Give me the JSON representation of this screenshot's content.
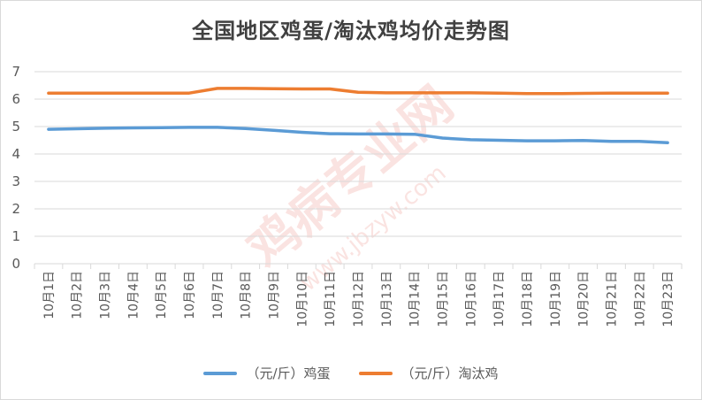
{
  "chart_data": {
    "type": "line",
    "title": "全国地区鸡蛋/淘汰鸡均价走势图",
    "xlabel": "",
    "ylabel": "",
    "ylim": [
      0,
      7
    ],
    "yticks": [
      0,
      1,
      2,
      3,
      4,
      5,
      6,
      7
    ],
    "grid": true,
    "legend_position": "bottom",
    "categories": [
      "10月1日",
      "10月2日",
      "10月3日",
      "10月4日",
      "10月5日",
      "10月6日",
      "10月7日",
      "10月8日",
      "10月9日",
      "10月10日",
      "10月11日",
      "10月12日",
      "10月13日",
      "10月14日",
      "10月15日",
      "10月16日",
      "10月17日",
      "10月18日",
      "10月19日",
      "10月20日",
      "10月21日",
      "10月22日",
      "10月23日"
    ],
    "series": [
      {
        "name": "（元/斤）鸡蛋",
        "color": "#5B9BD5",
        "values": [
          4.9,
          4.92,
          4.94,
          4.95,
          4.96,
          4.97,
          4.97,
          4.93,
          4.86,
          4.79,
          4.74,
          4.73,
          4.73,
          4.72,
          4.58,
          4.52,
          4.5,
          4.48,
          4.48,
          4.49,
          4.46,
          4.46,
          4.41
        ]
      },
      {
        "name": "（元/斤）淘汰鸡",
        "color": "#ED7D31",
        "values": [
          6.22,
          6.22,
          6.22,
          6.22,
          6.22,
          6.22,
          6.39,
          6.39,
          6.38,
          6.37,
          6.37,
          6.25,
          6.23,
          6.23,
          6.23,
          6.23,
          6.22,
          6.2,
          6.2,
          6.21,
          6.22,
          6.22,
          6.22
        ]
      }
    ]
  },
  "watermark": {
    "text_main": "鸡病专业网",
    "text_url": "www.jbzyw.com"
  }
}
